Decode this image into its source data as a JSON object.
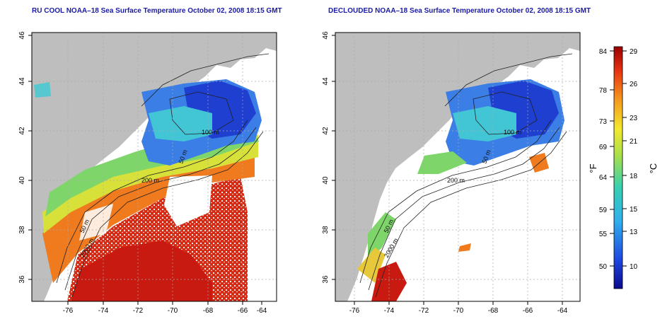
{
  "left_panel": {
    "title": "RU COOL NOAA–18 Sea Surface Temperature October 02, 2008 18:15 GMT"
  },
  "right_panel": {
    "title": "DECLOUDED NOAA–18 Sea Surface Temperature October 02, 2008 18:15 GMT"
  },
  "axes": {
    "x_ticks": [
      "-76",
      "-74",
      "-72",
      "-70",
      "-68",
      "-66",
      "-64"
    ],
    "y_ticks": [
      "46",
      "44",
      "42",
      "40",
      "38",
      "36"
    ]
  },
  "contours": {
    "labels": [
      "100 m",
      "50 m",
      "200 m",
      "50 m",
      "2000 m"
    ]
  },
  "colorbar": {
    "fahrenheit_label": "°F",
    "celsius_label": "°C",
    "fahrenheit_ticks": [
      "84",
      "78",
      "73",
      "69",
      "64",
      "59",
      "55",
      "50"
    ],
    "celsius_ticks": [
      "29",
      "26",
      "23",
      "21",
      "18",
      "15",
      "13",
      "10"
    ]
  },
  "colors": {
    "land": "#bebebe",
    "title": "#1a1aa6",
    "contour": "#222222"
  }
}
